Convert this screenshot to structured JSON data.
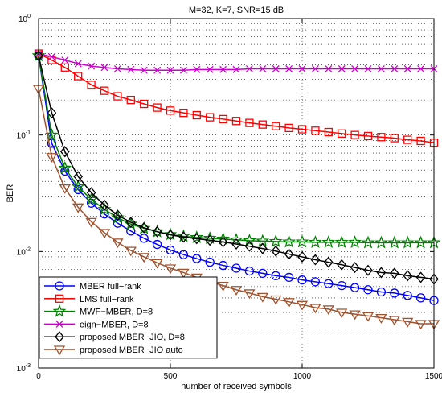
{
  "chart_data": {
    "type": "line",
    "title": "M=32, K=7, SNR=15 dB",
    "xlabel": "number of received symbols",
    "ylabel": "BER",
    "xlim": [
      0,
      1500
    ],
    "ylim": [
      0.001,
      1
    ],
    "yscale": "log",
    "grid": true,
    "legend_position": "bottom-left",
    "x_ticks": [
      "0",
      "500",
      "1000",
      "1500"
    ],
    "y_ticks": [
      {
        "base": "10",
        "exp": "0"
      },
      {
        "base": "10",
        "exp": "-1"
      },
      {
        "base": "10",
        "exp": "-2"
      },
      {
        "base": "10",
        "exp": "-3"
      }
    ],
    "x": [
      0,
      50,
      100,
      150,
      200,
      250,
      300,
      350,
      400,
      450,
      500,
      550,
      600,
      650,
      700,
      750,
      800,
      850,
      900,
      950,
      1000,
      1050,
      1100,
      1150,
      1200,
      1250,
      1300,
      1350,
      1400,
      1450,
      1500
    ],
    "series": [
      {
        "name": "MBER full−rank",
        "color": "#0000ff",
        "marker": "circle",
        "values": [
          0.48,
          0.085,
          0.049,
          0.034,
          0.026,
          0.021,
          0.0175,
          0.015,
          0.013,
          0.0115,
          0.0103,
          0.0094,
          0.0087,
          0.0081,
          0.0076,
          0.0072,
          0.0068,
          0.0065,
          0.0062,
          0.006,
          0.0057,
          0.0055,
          0.0053,
          0.0051,
          0.0049,
          0.0047,
          0.0045,
          0.0044,
          0.0042,
          0.004,
          0.0038
        ]
      },
      {
        "name": "LMS full−rank",
        "color": "#ff0000",
        "marker": "square",
        "values": [
          0.5,
          0.44,
          0.38,
          0.32,
          0.27,
          0.24,
          0.215,
          0.2,
          0.185,
          0.172,
          0.162,
          0.155,
          0.148,
          0.142,
          0.137,
          0.132,
          0.127,
          0.123,
          0.119,
          0.115,
          0.112,
          0.109,
          0.106,
          0.103,
          0.1,
          0.098,
          0.096,
          0.094,
          0.091,
          0.089,
          0.086
        ]
      },
      {
        "name": "MWF−MBER, D=8",
        "color": "#008000",
        "marker": "star",
        "values": [
          0.48,
          0.1,
          0.052,
          0.036,
          0.028,
          0.023,
          0.0195,
          0.0172,
          0.0158,
          0.0148,
          0.014,
          0.0135,
          0.0132,
          0.013,
          0.0128,
          0.0126,
          0.0124,
          0.0123,
          0.0122,
          0.0121,
          0.0121,
          0.012,
          0.012,
          0.012,
          0.012,
          0.0119,
          0.0119,
          0.0119,
          0.0119,
          0.0119,
          0.0119
        ]
      },
      {
        "name": "eign−MBER, D=8",
        "color": "#cc00cc",
        "marker": "x",
        "values": [
          0.5,
          0.47,
          0.44,
          0.41,
          0.39,
          0.38,
          0.37,
          0.365,
          0.36,
          0.36,
          0.36,
          0.36,
          0.365,
          0.365,
          0.365,
          0.365,
          0.37,
          0.37,
          0.37,
          0.37,
          0.37,
          0.37,
          0.37,
          0.37,
          0.37,
          0.37,
          0.37,
          0.37,
          0.37,
          0.37,
          0.37
        ]
      },
      {
        "name": "proposed MBER−JIO, D=8",
        "color": "#000000",
        "marker": "diamond",
        "values": [
          0.48,
          0.155,
          0.072,
          0.044,
          0.032,
          0.025,
          0.0205,
          0.0178,
          0.016,
          0.0148,
          0.0139,
          0.0133,
          0.0129,
          0.0125,
          0.0121,
          0.0116,
          0.0111,
          0.0106,
          0.0101,
          0.0095,
          0.009,
          0.0085,
          0.0081,
          0.0077,
          0.0073,
          0.0069,
          0.0066,
          0.0065,
          0.0062,
          0.006,
          0.0058
        ]
      },
      {
        "name": "proposed MBER−JIO auto",
        "color": "#a0522d",
        "marker": "triangle-down",
        "values": [
          0.25,
          0.065,
          0.035,
          0.024,
          0.018,
          0.0145,
          0.012,
          0.0102,
          0.009,
          0.008,
          0.0072,
          0.0066,
          0.006,
          0.0055,
          0.0051,
          0.0047,
          0.0044,
          0.0041,
          0.0039,
          0.0037,
          0.0035,
          0.0033,
          0.0032,
          0.003,
          0.0029,
          0.0028,
          0.0027,
          0.0026,
          0.0025,
          0.0024,
          0.0024
        ]
      }
    ]
  }
}
